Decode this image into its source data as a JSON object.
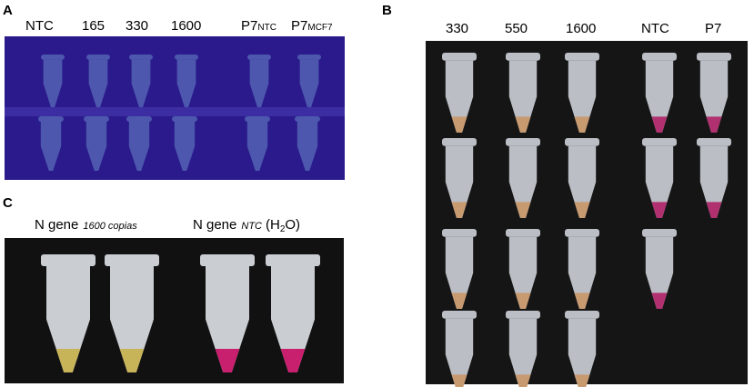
{
  "panel_a": {
    "label": "A",
    "lanes": [
      {
        "main": "NTC"
      },
      {
        "main": "165"
      },
      {
        "main": "330"
      },
      {
        "main": "1600"
      },
      {
        "main": "P7",
        "sub": "NTC"
      },
      {
        "main": "P7",
        "sub": "MCF7"
      }
    ]
  },
  "panel_b": {
    "label": "B",
    "lanes": [
      "330",
      "550",
      "1600",
      "NTC",
      "P7"
    ]
  },
  "panel_c": {
    "label": "C",
    "captions": [
      {
        "main": "N gene",
        "note": "1600 copias"
      },
      {
        "main": "N gene",
        "note": "NTC",
        "parts": [
          "(H",
          "2",
          "O)"
        ]
      }
    ]
  }
}
